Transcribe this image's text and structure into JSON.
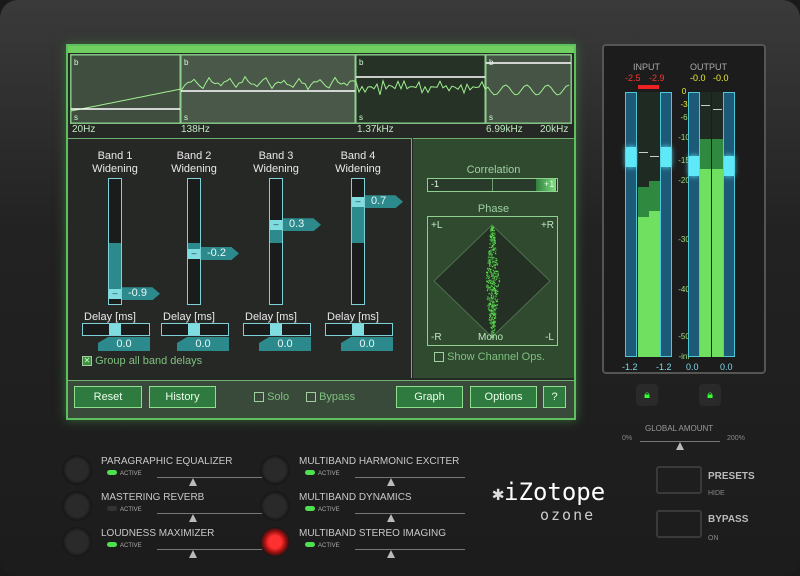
{
  "spectrum": {
    "band_markers": [
      "b",
      "s"
    ],
    "freq_labels": [
      "20Hz",
      "138Hz",
      "1.37kHz",
      "6.99kHz",
      "20kHz"
    ]
  },
  "bands": [
    {
      "title": "Band 1",
      "subtitle": "Widening",
      "value": -0.9,
      "value_label": "-0.9",
      "delay_label": "Delay [ms]",
      "delay_value": "0.0"
    },
    {
      "title": "Band 2",
      "subtitle": "Widening",
      "value": -0.2,
      "value_label": "-0.2",
      "delay_label": "Delay [ms]",
      "delay_value": "0.0"
    },
    {
      "title": "Band 3",
      "subtitle": "Widening",
      "value": 0.3,
      "value_label": "0.3",
      "delay_label": "Delay [ms]",
      "delay_value": "0.0"
    },
    {
      "title": "Band 4",
      "subtitle": "Widening",
      "value": 0.7,
      "value_label": "0.7",
      "delay_label": "Delay [ms]",
      "delay_value": "0.0"
    }
  ],
  "group_delays": {
    "label": "Group all band delays",
    "checked": true
  },
  "correlation": {
    "title": "Correlation",
    "min_label": "-1",
    "max_label": "+1",
    "value": 0.9
  },
  "phase": {
    "title": "Phase",
    "tl": "+L",
    "tr": "+R",
    "bl": "-R",
    "br": "-L",
    "bottom": "Mono",
    "show_ops": "Show Channel Ops."
  },
  "toolbar": {
    "reset": "Reset",
    "history": "History",
    "solo": "Solo",
    "bypass": "Bypass",
    "graph": "Graph",
    "options": "Options",
    "help": "?"
  },
  "meters": {
    "input_label": "INPUT",
    "output_label": "OUTPUT",
    "input_peaks": [
      "-2.5",
      "-2.9"
    ],
    "output_peaks": [
      "-0.0",
      "-0.0"
    ],
    "input_gain": [
      "-1.2",
      "-1.2"
    ],
    "output_gain": [
      "0.0",
      "0.0"
    ],
    "scale": [
      "0",
      "-3",
      "-6",
      "-10",
      "-15",
      "-20",
      "-30",
      "-40",
      "-50",
      "-inf"
    ],
    "input_levels_db": [
      -26,
      -25
    ],
    "output_levels_db": [
      -17,
      -17
    ]
  },
  "global_amount": {
    "label": "GLOBAL AMOUNT",
    "min": "0%",
    "max": "200%",
    "value": 100
  },
  "modules": [
    {
      "name": "PARAGRAPHIC EQUALIZER",
      "active": "ACTIVE",
      "on": true,
      "selected": false
    },
    {
      "name": "MASTERING REVERB",
      "active": "ACTIVE",
      "on": false,
      "selected": false
    },
    {
      "name": "LOUDNESS MAXIMIZER",
      "active": "ACTIVE",
      "on": true,
      "selected": false
    },
    {
      "name": "MULTIBAND HARMONIC EXCITER",
      "active": "ACTIVE",
      "on": true,
      "selected": false
    },
    {
      "name": "MULTIBAND DYNAMICS",
      "active": "ACTIVE",
      "on": true,
      "selected": false
    },
    {
      "name": "MULTIBAND STEREO IMAGING",
      "active": "ACTIVE",
      "on": true,
      "selected": true
    }
  ],
  "brand": {
    "name": "iZotope",
    "product": "ozone"
  },
  "presets": {
    "label": "PRESETS",
    "sub": "HIDE"
  },
  "bypass": {
    "label": "BYPASS",
    "sub": "ON"
  }
}
